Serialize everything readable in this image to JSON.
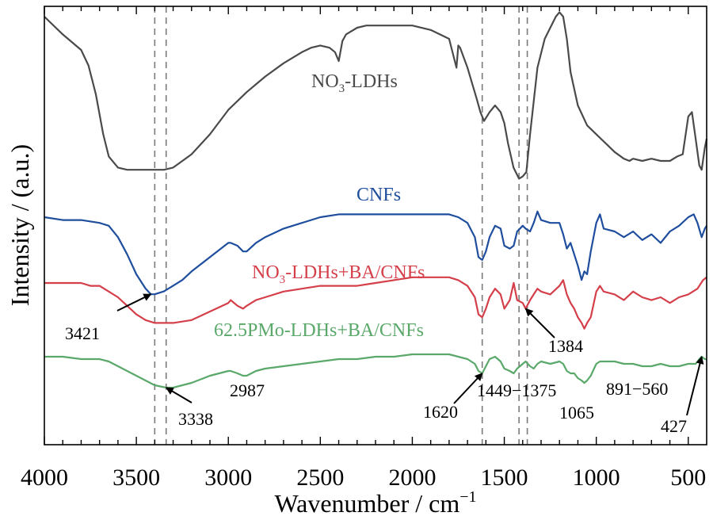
{
  "chart_data": {
    "type": "line",
    "xlabel": "Wavenumber / cm",
    "xlabel_sup": "−1",
    "ylabel": "Intensity / (a.u.)",
    "xlim": [
      4000,
      400
    ],
    "x_reversed": true,
    "x_ticks": [
      4000,
      3500,
      3000,
      2500,
      2000,
      1500,
      1000,
      500
    ],
    "y_ticks_shown": false,
    "grid": false,
    "legend": "none",
    "series": [
      {
        "name": "NO₃-LDHs",
        "color": "#4a4a4a",
        "x": [
          4000,
          3900,
          3800,
          3760,
          3720,
          3680,
          3650,
          3600,
          3550,
          3500,
          3450,
          3400,
          3350,
          3300,
          3200,
          3100,
          3000,
          2900,
          2800,
          2700,
          2600,
          2550,
          2500,
          2450,
          2420,
          2400,
          2380,
          2360,
          2340,
          2300,
          2250,
          2200,
          2100,
          2000,
          1900,
          1800,
          1760,
          1750,
          1740,
          1700,
          1650,
          1630,
          1610,
          1580,
          1550,
          1520,
          1500,
          1480,
          1450,
          1420,
          1400,
          1380,
          1360,
          1320,
          1280,
          1250,
          1220,
          1200,
          1180,
          1160,
          1140,
          1100,
          1050,
          1000,
          950,
          900,
          850,
          820,
          800,
          750,
          700,
          650,
          600,
          560,
          530,
          500,
          480,
          460,
          440,
          427,
          410,
          400
        ],
        "y": [
          0.95,
          0.87,
          0.8,
          0.73,
          0.6,
          0.42,
          0.32,
          0.27,
          0.26,
          0.26,
          0.26,
          0.26,
          0.26,
          0.27,
          0.33,
          0.42,
          0.53,
          0.61,
          0.68,
          0.74,
          0.79,
          0.81,
          0.82,
          0.81,
          0.79,
          0.75,
          0.84,
          0.87,
          0.88,
          0.9,
          0.91,
          0.91,
          0.91,
          0.91,
          0.89,
          0.85,
          0.72,
          0.82,
          0.81,
          0.72,
          0.58,
          0.52,
          0.48,
          0.52,
          0.55,
          0.52,
          0.47,
          0.38,
          0.27,
          0.22,
          0.23,
          0.25,
          0.42,
          0.72,
          0.85,
          0.9,
          0.95,
          0.97,
          0.95,
          0.85,
          0.7,
          0.55,
          0.46,
          0.42,
          0.38,
          0.34,
          0.31,
          0.3,
          0.31,
          0.3,
          0.31,
          0.3,
          0.3,
          0.32,
          0.33,
          0.5,
          0.52,
          0.4,
          0.28,
          0.26,
          0.36,
          0.4
        ]
      },
      {
        "name": "CNFs",
        "color": "#1f4e9e",
        "x": [
          4000,
          3900,
          3800,
          3700,
          3650,
          3600,
          3550,
          3500,
          3450,
          3421,
          3400,
          3350,
          3300,
          3250,
          3200,
          3100,
          3000,
          2987,
          2950,
          2920,
          2900,
          2850,
          2800,
          2700,
          2600,
          2500,
          2400,
          2300,
          2200,
          2100,
          2000,
          1900,
          1800,
          1750,
          1700,
          1660,
          1640,
          1620,
          1600,
          1580,
          1550,
          1520,
          1500,
          1470,
          1449,
          1430,
          1400,
          1384,
          1360,
          1340,
          1320,
          1300,
          1250,
          1200,
          1180,
          1160,
          1140,
          1120,
          1100,
          1080,
          1065,
          1050,
          1030,
          1000,
          980,
          960,
          900,
          850,
          800,
          750,
          700,
          650,
          600,
          550,
          500,
          470,
          450,
          427,
          410,
          400
        ],
        "y": [
          0.0,
          -0.01,
          -0.01,
          -0.02,
          -0.03,
          -0.07,
          -0.13,
          -0.2,
          -0.25,
          -0.27,
          -0.27,
          -0.26,
          -0.24,
          -0.22,
          -0.19,
          -0.14,
          -0.09,
          -0.09,
          -0.1,
          -0.12,
          -0.12,
          -0.09,
          -0.07,
          -0.04,
          -0.02,
          0.0,
          0.01,
          0.01,
          0.01,
          0.01,
          0.01,
          0.01,
          0.01,
          0.0,
          -0.02,
          -0.07,
          -0.14,
          -0.15,
          -0.12,
          -0.07,
          -0.03,
          -0.04,
          -0.1,
          -0.11,
          -0.1,
          -0.05,
          -0.03,
          -0.04,
          -0.05,
          -0.02,
          0.02,
          -0.01,
          -0.02,
          -0.02,
          -0.06,
          -0.11,
          -0.09,
          -0.13,
          -0.17,
          -0.22,
          -0.19,
          -0.2,
          -0.12,
          -0.02,
          0.01,
          -0.04,
          -0.05,
          -0.07,
          -0.05,
          -0.08,
          -0.06,
          -0.09,
          -0.05,
          -0.03,
          0.0,
          0.01,
          -0.02,
          -0.07,
          -0.04,
          -0.03
        ]
      },
      {
        "name": "NO₃-LDHs+BA/CNFs",
        "color": "#d43f4a",
        "x": [
          4000,
          3900,
          3800,
          3750,
          3700,
          3650,
          3600,
          3550,
          3500,
          3450,
          3400,
          3350,
          3300,
          3200,
          3100,
          3000,
          2987,
          2950,
          2920,
          2900,
          2850,
          2800,
          2700,
          2600,
          2500,
          2400,
          2300,
          2200,
          2100,
          2000,
          1900,
          1800,
          1750,
          1700,
          1660,
          1640,
          1620,
          1600,
          1580,
          1550,
          1520,
          1500,
          1470,
          1449,
          1430,
          1400,
          1384,
          1360,
          1340,
          1320,
          1300,
          1250,
          1200,
          1180,
          1160,
          1140,
          1120,
          1100,
          1080,
          1065,
          1050,
          1030,
          1000,
          980,
          960,
          900,
          850,
          800,
          750,
          700,
          650,
          600,
          550,
          500,
          450,
          420,
          400
        ],
        "y": [
          0.0,
          0.0,
          0.0,
          -0.01,
          -0.01,
          -0.03,
          -0.05,
          -0.08,
          -0.11,
          -0.13,
          -0.14,
          -0.14,
          -0.14,
          -0.13,
          -0.1,
          -0.07,
          -0.06,
          -0.08,
          -0.09,
          -0.08,
          -0.06,
          -0.05,
          -0.03,
          -0.02,
          -0.01,
          -0.01,
          -0.01,
          0.0,
          0.01,
          0.02,
          0.02,
          0.02,
          0.01,
          -0.01,
          -0.05,
          -0.11,
          -0.12,
          -0.09,
          -0.05,
          -0.02,
          -0.04,
          -0.09,
          -0.06,
          0.0,
          -0.06,
          -0.07,
          -0.09,
          -0.06,
          -0.04,
          -0.02,
          -0.03,
          -0.04,
          -0.01,
          0.01,
          -0.04,
          -0.07,
          -0.09,
          -0.12,
          -0.14,
          -0.16,
          -0.14,
          -0.12,
          -0.03,
          -0.01,
          -0.03,
          -0.04,
          -0.06,
          -0.03,
          -0.05,
          -0.06,
          -0.05,
          -0.07,
          -0.05,
          -0.04,
          -0.02,
          0.01,
          0.02
        ]
      },
      {
        "name": "62.5PMo-LDHs+BA/CNFs",
        "color": "#5aa86a",
        "x": [
          4000,
          3900,
          3800,
          3700,
          3650,
          3600,
          3550,
          3500,
          3450,
          3400,
          3338,
          3300,
          3250,
          3200,
          3100,
          3000,
          2987,
          2950,
          2920,
          2900,
          2850,
          2800,
          2700,
          2600,
          2500,
          2400,
          2300,
          2200,
          2100,
          2000,
          1900,
          1800,
          1750,
          1700,
          1660,
          1640,
          1620,
          1600,
          1580,
          1550,
          1520,
          1500,
          1470,
          1449,
          1430,
          1400,
          1384,
          1360,
          1340,
          1320,
          1300,
          1250,
          1200,
          1180,
          1160,
          1140,
          1120,
          1100,
          1080,
          1065,
          1050,
          1030,
          1000,
          980,
          960,
          900,
          850,
          800,
          750,
          700,
          650,
          600,
          550,
          500,
          460,
          440,
          427,
          410,
          400
        ],
        "y": [
          0.0,
          0.0,
          -0.01,
          -0.01,
          -0.02,
          -0.04,
          -0.06,
          -0.08,
          -0.1,
          -0.12,
          -0.13,
          -0.13,
          -0.12,
          -0.11,
          -0.08,
          -0.06,
          -0.06,
          -0.07,
          -0.08,
          -0.08,
          -0.06,
          -0.05,
          -0.04,
          -0.03,
          -0.02,
          -0.01,
          -0.01,
          0.0,
          0.0,
          0.01,
          0.01,
          0.01,
          0.0,
          -0.01,
          -0.03,
          -0.06,
          -0.07,
          -0.04,
          -0.01,
          0.0,
          -0.02,
          -0.05,
          -0.06,
          -0.07,
          -0.05,
          -0.03,
          -0.02,
          -0.04,
          -0.05,
          -0.03,
          -0.02,
          -0.03,
          -0.02,
          -0.03,
          -0.06,
          -0.07,
          -0.07,
          -0.09,
          -0.1,
          -0.11,
          -0.1,
          -0.08,
          -0.03,
          -0.02,
          -0.02,
          -0.02,
          -0.03,
          -0.03,
          -0.04,
          -0.04,
          -0.03,
          -0.04,
          -0.04,
          -0.03,
          -0.03,
          -0.01,
          0.0,
          -0.01,
          -0.01
        ]
      }
    ],
    "series_labels": [
      {
        "text_pre": "NO",
        "sub": "3",
        "text_post": "-LDHs",
        "color": "#4a4a4a"
      },
      {
        "text_pre": "CNFs",
        "sub": "",
        "text_post": "",
        "color": "#1f4e9e"
      },
      {
        "text_pre": "NO",
        "sub": "3",
        "text_post": "-LDHs+BA/CNFs",
        "color": "#d43f4a"
      },
      {
        "text_pre": "62.5PMo-LDHs+BA/CNFs",
        "sub": "",
        "text_post": "",
        "color": "#5aa86a"
      }
    ],
    "reference_lines": [
      3400,
      3338,
      1620,
      1420,
      1375
    ],
    "annotations": [
      {
        "text": "3421",
        "x": 3421,
        "arrow": true
      },
      {
        "text": "3338",
        "x": 3338,
        "arrow": true
      },
      {
        "text": "2987",
        "x": 2987,
        "arrow": false
      },
      {
        "text": "1620",
        "x": 1620,
        "arrow": true
      },
      {
        "text": "1449−1375",
        "x": 1412,
        "arrow": false
      },
      {
        "text": "1384",
        "x": 1384,
        "arrow": true
      },
      {
        "text": "1065",
        "x": 1065,
        "arrow": false
      },
      {
        "text": "891−560",
        "x": 725,
        "arrow": false
      },
      {
        "text": "427",
        "x": 427,
        "arrow": true
      }
    ]
  }
}
